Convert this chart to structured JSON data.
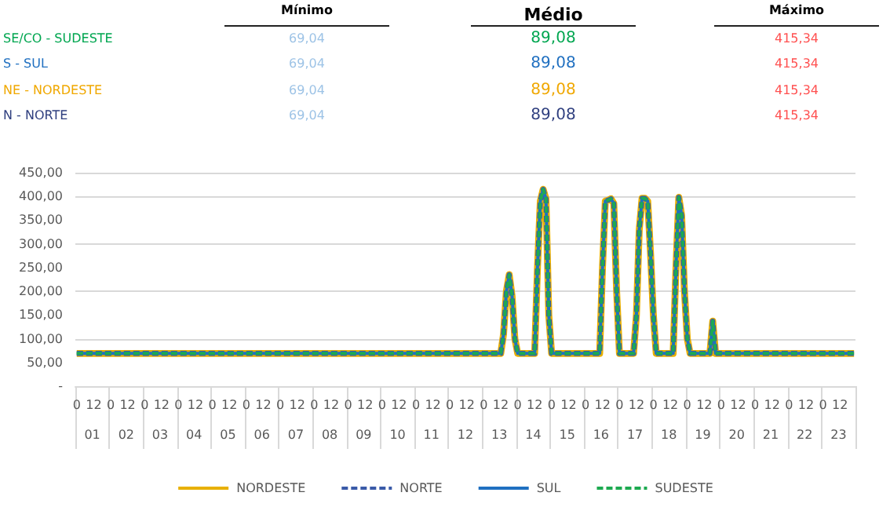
{
  "chart_data": [
    {
      "type": "other",
      "categories": [
        "SE/CO - SUDESTE",
        "S - SUL",
        "NE - NORDESTE",
        "N - NORTE"
      ],
      "series": [
        {
          "name": "Mínimo",
          "colors": [
            "#9dc3e6",
            "#9dc3e6",
            "#9dc3e6",
            "#9dc3e6"
          ],
          "values": [
            69.04,
            69.04,
            69.04,
            69.04
          ],
          "value_labels": [
            "69,04",
            "69,04",
            "69,04",
            "69,04"
          ]
        },
        {
          "name": "Médio",
          "colors": [
            "#00a650",
            "#1f6fc0",
            "#f0a800",
            "#2f3f7f"
          ],
          "values": [
            89.08,
            89.08,
            89.08,
            89.08
          ],
          "value_labels": [
            "89,08",
            "89,08",
            "89,08",
            "89,08"
          ]
        },
        {
          "name": "Máximo",
          "colors": [
            "#ff5050",
            "#ff5050",
            "#ff5050",
            "#ff5050"
          ],
          "values": [
            415.34,
            415.34,
            415.34,
            415.34
          ],
          "value_labels": [
            "415,34",
            "415,34",
            "415,34",
            "415,34"
          ]
        }
      ]
    },
    {
      "type": "line",
      "marker": "none",
      "grid": "y",
      "legend": "bottom",
      "categories": [
        "0",
        null,
        null,
        null,
        null,
        null,
        "12",
        null,
        null,
        null,
        null,
        null,
        "0",
        null,
        null,
        null,
        null,
        null,
        "12",
        null,
        null,
        null,
        null,
        null,
        "0",
        null,
        null,
        null,
        null,
        null,
        "12",
        null,
        null,
        null,
        null,
        null,
        "0",
        null,
        null,
        null,
        null,
        null,
        "12",
        null,
        null,
        null,
        null,
        null,
        "0",
        null,
        null,
        null,
        null,
        null,
        "12",
        null,
        null,
        null,
        null,
        null,
        "0",
        null,
        null,
        null,
        null,
        null,
        "12",
        null,
        null,
        null,
        null,
        null,
        "0",
        null,
        null,
        null,
        null,
        null,
        "12",
        null,
        null,
        null,
        null,
        null,
        "0",
        null,
        null,
        null,
        null,
        null,
        "12",
        null,
        null,
        null,
        null,
        null,
        "0",
        null,
        null,
        null,
        null,
        null,
        "12",
        null,
        null,
        null,
        null,
        null,
        "0",
        null,
        null,
        null,
        null,
        null,
        "12",
        null,
        null,
        null,
        null,
        null,
        "0",
        null,
        null,
        null,
        null,
        null,
        "12",
        null,
        null,
        null,
        null,
        null,
        "0",
        null,
        null,
        null,
        null,
        null,
        "12",
        null,
        null,
        null,
        null,
        null,
        "0",
        null,
        null,
        null,
        null,
        null,
        "12",
        null,
        null,
        null,
        null,
        null,
        "0",
        null,
        null,
        null,
        null,
        null,
        "12",
        null,
        null,
        null,
        null,
        null,
        "0",
        null,
        null,
        null,
        null,
        null,
        "12",
        null,
        null,
        null,
        null,
        null,
        "0",
        null,
        null,
        null,
        null,
        null,
        "12",
        null,
        null,
        null,
        null,
        null,
        "0",
        null,
        null,
        null,
        null,
        null,
        "12",
        null,
        null,
        null,
        null,
        null,
        "0",
        null,
        null,
        null,
        null,
        null,
        "12",
        null,
        null,
        null,
        null,
        null,
        "0",
        null,
        null,
        null,
        null,
        null,
        "12",
        null,
        null,
        null,
        null,
        null,
        "0",
        null,
        null,
        null,
        null,
        null,
        "12",
        null,
        null,
        null,
        null,
        null,
        "0",
        null,
        null,
        null,
        null,
        null,
        "12",
        null,
        null,
        null,
        null,
        null,
        "0",
        null,
        null,
        null,
        null,
        null,
        "12",
        null,
        null,
        null,
        null,
        null,
        "0",
        null,
        null,
        null,
        null,
        null,
        "12",
        null,
        null,
        null,
        null,
        null
      ],
      "annotations": [
        "01",
        "02",
        "03",
        "04",
        "05",
        "06",
        "07",
        "08",
        "09",
        "10",
        "11",
        "12",
        "13",
        "14",
        "15",
        "16",
        "17",
        "18",
        "19",
        "20",
        "21",
        "22",
        "23"
      ],
      "series": [
        {
          "name": "NORDESTE",
          "color": "#e8b000",
          "line_style": "solid",
          "values": [
            69,
            69,
            69,
            69,
            69,
            69,
            69,
            69,
            69,
            69,
            69,
            69,
            69,
            69,
            69,
            69,
            69,
            69,
            69,
            69,
            69,
            69,
            69,
            69,
            69,
            69,
            69,
            69,
            69,
            69,
            69,
            69,
            69,
            69,
            69,
            69,
            69,
            69,
            69,
            69,
            69,
            69,
            69,
            69,
            69,
            69,
            69,
            69,
            69,
            69,
            69,
            69,
            69,
            69,
            69,
            69,
            69,
            69,
            69,
            69,
            69,
            69,
            69,
            69,
            69,
            69,
            69,
            69,
            69,
            69,
            69,
            69,
            69,
            69,
            69,
            69,
            69,
            69,
            69,
            69,
            69,
            69,
            69,
            69,
            69,
            69,
            69,
            69,
            69,
            69,
            69,
            69,
            69,
            69,
            69,
            69,
            69,
            69,
            69,
            69,
            69,
            69,
            69,
            69,
            69,
            69,
            69,
            69,
            69,
            69,
            69,
            69,
            69,
            69,
            69,
            69,
            69,
            69,
            69,
            69,
            69,
            69,
            69,
            69,
            69,
            69,
            69,
            69,
            69,
            69,
            69,
            69,
            69,
            69,
            69,
            69,
            69,
            69,
            69,
            69,
            69,
            69,
            69,
            69,
            69,
            69,
            69,
            69,
            69,
            69,
            69,
            110,
            200,
            235,
            190,
            100,
            69,
            69,
            69,
            69,
            69,
            69,
            69,
            250,
            390,
            415,
            395,
            150,
            69,
            69,
            69,
            69,
            69,
            69,
            69,
            69,
            69,
            69,
            69,
            69,
            69,
            69,
            69,
            69,
            69,
            69,
            250,
            390,
            392,
            395,
            385,
            200,
            69,
            69,
            69,
            69,
            69,
            69,
            150,
            330,
            396,
            396,
            390,
            280,
            150,
            69,
            69,
            69,
            69,
            69,
            69,
            69,
            250,
            398,
            360,
            200,
            100,
            69,
            69,
            69,
            69,
            69,
            69,
            69,
            69,
            137,
            69,
            69,
            69,
            69,
            69,
            69,
            69,
            69,
            69,
            69,
            69,
            69,
            69,
            69,
            69,
            69,
            69,
            69,
            69,
            69,
            69,
            69,
            69,
            69,
            69,
            69,
            69,
            69,
            69,
            69,
            69,
            69,
            69,
            69,
            69,
            69,
            69,
            69,
            69,
            69,
            69,
            69,
            69,
            69,
            69,
            69,
            69,
            69,
            69,
            69
          ]
        },
        {
          "name": "NORTE",
          "color": "#3a5aa8",
          "line_style": "dashed",
          "values": [
            69,
            69,
            69,
            69,
            69,
            69,
            69,
            69,
            69,
            69,
            69,
            69,
            69,
            69,
            69,
            69,
            69,
            69,
            69,
            69,
            69,
            69,
            69,
            69,
            69,
            69,
            69,
            69,
            69,
            69,
            69,
            69,
            69,
            69,
            69,
            69,
            69,
            69,
            69,
            69,
            69,
            69,
            69,
            69,
            69,
            69,
            69,
            69,
            69,
            69,
            69,
            69,
            69,
            69,
            69,
            69,
            69,
            69,
            69,
            69,
            69,
            69,
            69,
            69,
            69,
            69,
            69,
            69,
            69,
            69,
            69,
            69,
            69,
            69,
            69,
            69,
            69,
            69,
            69,
            69,
            69,
            69,
            69,
            69,
            69,
            69,
            69,
            69,
            69,
            69,
            69,
            69,
            69,
            69,
            69,
            69,
            69,
            69,
            69,
            69,
            69,
            69,
            69,
            69,
            69,
            69,
            69,
            69,
            69,
            69,
            69,
            69,
            69,
            69,
            69,
            69,
            69,
            69,
            69,
            69,
            69,
            69,
            69,
            69,
            69,
            69,
            69,
            69,
            69,
            69,
            69,
            69,
            69,
            69,
            69,
            69,
            69,
            69,
            69,
            69,
            69,
            69,
            69,
            69,
            69,
            69,
            69,
            69,
            69,
            69,
            69,
            110,
            200,
            235,
            190,
            100,
            69,
            69,
            69,
            69,
            69,
            69,
            69,
            250,
            390,
            415,
            395,
            150,
            69,
            69,
            69,
            69,
            69,
            69,
            69,
            69,
            69,
            69,
            69,
            69,
            69,
            69,
            69,
            69,
            69,
            69,
            250,
            390,
            392,
            395,
            385,
            200,
            69,
            69,
            69,
            69,
            69,
            69,
            150,
            330,
            396,
            396,
            390,
            280,
            150,
            69,
            69,
            69,
            69,
            69,
            69,
            69,
            250,
            398,
            360,
            200,
            100,
            69,
            69,
            69,
            69,
            69,
            69,
            69,
            69,
            137,
            69,
            69,
            69,
            69,
            69,
            69,
            69,
            69,
            69,
            69,
            69,
            69,
            69,
            69,
            69,
            69,
            69,
            69,
            69,
            69,
            69,
            69,
            69,
            69,
            69,
            69,
            69,
            69,
            69,
            69,
            69,
            69,
            69,
            69,
            69,
            69,
            69,
            69,
            69,
            69,
            69,
            69,
            69,
            69,
            69,
            69,
            69,
            69,
            69,
            69
          ]
        },
        {
          "name": "SUL",
          "color": "#1f70c1",
          "line_style": "solid",
          "values": [
            69,
            69,
            69,
            69,
            69,
            69,
            69,
            69,
            69,
            69,
            69,
            69,
            69,
            69,
            69,
            69,
            69,
            69,
            69,
            69,
            69,
            69,
            69,
            69,
            69,
            69,
            69,
            69,
            69,
            69,
            69,
            69,
            69,
            69,
            69,
            69,
            69,
            69,
            69,
            69,
            69,
            69,
            69,
            69,
            69,
            69,
            69,
            69,
            69,
            69,
            69,
            69,
            69,
            69,
            69,
            69,
            69,
            69,
            69,
            69,
            69,
            69,
            69,
            69,
            69,
            69,
            69,
            69,
            69,
            69,
            69,
            69,
            69,
            69,
            69,
            69,
            69,
            69,
            69,
            69,
            69,
            69,
            69,
            69,
            69,
            69,
            69,
            69,
            69,
            69,
            69,
            69,
            69,
            69,
            69,
            69,
            69,
            69,
            69,
            69,
            69,
            69,
            69,
            69,
            69,
            69,
            69,
            69,
            69,
            69,
            69,
            69,
            69,
            69,
            69,
            69,
            69,
            69,
            69,
            69,
            69,
            69,
            69,
            69,
            69,
            69,
            69,
            69,
            69,
            69,
            69,
            69,
            69,
            69,
            69,
            69,
            69,
            69,
            69,
            69,
            69,
            69,
            69,
            69,
            69,
            69,
            69,
            69,
            69,
            69,
            69,
            110,
            200,
            235,
            190,
            100,
            69,
            69,
            69,
            69,
            69,
            69,
            69,
            250,
            390,
            415,
            395,
            150,
            69,
            69,
            69,
            69,
            69,
            69,
            69,
            69,
            69,
            69,
            69,
            69,
            69,
            69,
            69,
            69,
            69,
            69,
            250,
            390,
            392,
            395,
            385,
            200,
            69,
            69,
            69,
            69,
            69,
            69,
            150,
            330,
            396,
            396,
            390,
            280,
            150,
            69,
            69,
            69,
            69,
            69,
            69,
            69,
            250,
            398,
            360,
            200,
            100,
            69,
            69,
            69,
            69,
            69,
            69,
            69,
            69,
            137,
            69,
            69,
            69,
            69,
            69,
            69,
            69,
            69,
            69,
            69,
            69,
            69,
            69,
            69,
            69,
            69,
            69,
            69,
            69,
            69,
            69,
            69,
            69,
            69,
            69,
            69,
            69,
            69,
            69,
            69,
            69,
            69,
            69,
            69,
            69,
            69,
            69,
            69,
            69,
            69,
            69,
            69,
            69,
            69,
            69,
            69,
            69,
            69,
            69,
            69
          ]
        },
        {
          "name": "SUDESTE",
          "color": "#1daa50",
          "line_style": "dashed",
          "values": [
            69,
            69,
            69,
            69,
            69,
            69,
            69,
            69,
            69,
            69,
            69,
            69,
            69,
            69,
            69,
            69,
            69,
            69,
            69,
            69,
            69,
            69,
            69,
            69,
            69,
            69,
            69,
            69,
            69,
            69,
            69,
            69,
            69,
            69,
            69,
            69,
            69,
            69,
            69,
            69,
            69,
            69,
            69,
            69,
            69,
            69,
            69,
            69,
            69,
            69,
            69,
            69,
            69,
            69,
            69,
            69,
            69,
            69,
            69,
            69,
            69,
            69,
            69,
            69,
            69,
            69,
            69,
            69,
            69,
            69,
            69,
            69,
            69,
            69,
            69,
            69,
            69,
            69,
            69,
            69,
            69,
            69,
            69,
            69,
            69,
            69,
            69,
            69,
            69,
            69,
            69,
            69,
            69,
            69,
            69,
            69,
            69,
            69,
            69,
            69,
            69,
            69,
            69,
            69,
            69,
            69,
            69,
            69,
            69,
            69,
            69,
            69,
            69,
            69,
            69,
            69,
            69,
            69,
            69,
            69,
            69,
            69,
            69,
            69,
            69,
            69,
            69,
            69,
            69,
            69,
            69,
            69,
            69,
            69,
            69,
            69,
            69,
            69,
            69,
            69,
            69,
            69,
            69,
            69,
            69,
            69,
            69,
            69,
            69,
            69,
            69,
            110,
            200,
            235,
            190,
            100,
            69,
            69,
            69,
            69,
            69,
            69,
            69,
            250,
            390,
            415,
            395,
            150,
            69,
            69,
            69,
            69,
            69,
            69,
            69,
            69,
            69,
            69,
            69,
            69,
            69,
            69,
            69,
            69,
            69,
            69,
            250,
            390,
            392,
            395,
            385,
            200,
            69,
            69,
            69,
            69,
            69,
            69,
            150,
            330,
            396,
            396,
            390,
            280,
            150,
            69,
            69,
            69,
            69,
            69,
            69,
            69,
            250,
            398,
            360,
            200,
            100,
            69,
            69,
            69,
            69,
            69,
            69,
            69,
            69,
            137,
            69,
            69,
            69,
            69,
            69,
            69,
            69,
            69,
            69,
            69,
            69,
            69,
            69,
            69,
            69,
            69,
            69,
            69,
            69,
            69,
            69,
            69,
            69,
            69,
            69,
            69,
            69,
            69,
            69,
            69,
            69,
            69,
            69,
            69,
            69,
            69,
            69,
            69,
            69,
            69,
            69,
            69,
            69,
            69,
            69,
            69,
            69,
            69,
            69,
            69
          ]
        }
      ],
      "ylim": [
        0,
        450
      ],
      "yticks": [
        {
          "value": 0,
          "label": "-"
        },
        {
          "value": 50,
          "label": "50,00"
        },
        {
          "value": 100,
          "label": "100,00"
        },
        {
          "value": 150,
          "label": "150,00"
        },
        {
          "value": 200,
          "label": "200,00"
        },
        {
          "value": 250,
          "label": "250,00"
        },
        {
          "value": 300,
          "label": "300,00"
        },
        {
          "value": 350,
          "label": "350,00"
        },
        {
          "value": 400,
          "label": "400,00"
        },
        {
          "value": 450,
          "label": "450,00"
        }
      ]
    }
  ]
}
